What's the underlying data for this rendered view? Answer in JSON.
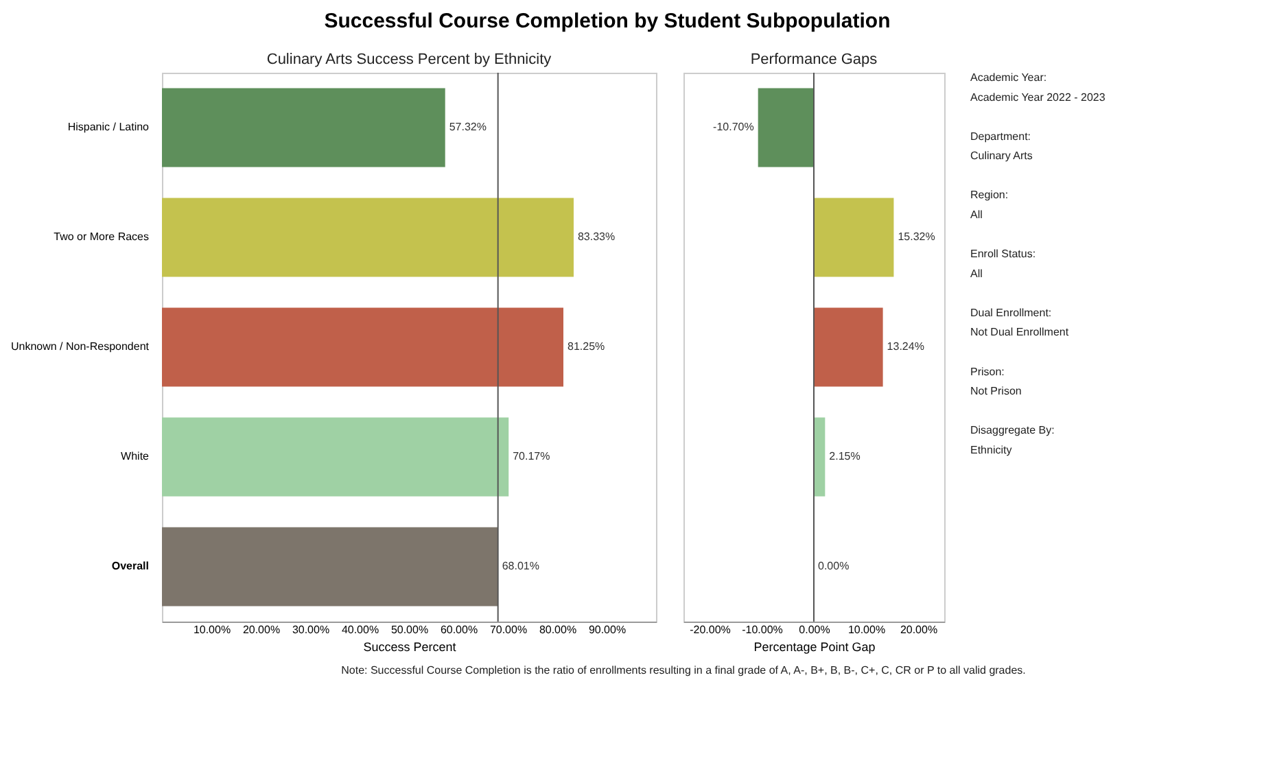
{
  "chart_data": [
    {
      "type": "bar",
      "orientation": "horizontal",
      "title": "Successful Course Completion by Student Subpopulation",
      "subtitle": "Culinary Arts Success Percent by Ethnicity",
      "xlabel": "Success Percent",
      "categories": [
        "Hispanic / Latino",
        "Two or More Races",
        "Unknown / Non-Respondent",
        "White",
        "Overall"
      ],
      "values": [
        57.32,
        83.33,
        81.25,
        70.17,
        68.01
      ],
      "colors": [
        "#5e8f5b",
        "#c4c24e",
        "#c0604a",
        "#9fd1a4",
        "#7d756b"
      ],
      "value_labels": [
        "57.32%",
        "83.33%",
        "81.25%",
        "70.17%",
        "68.01%"
      ],
      "xlim": [
        0,
        100
      ],
      "xticks": [
        {
          "value": 10,
          "label": "10.00%"
        },
        {
          "value": 20,
          "label": "20.00%"
        },
        {
          "value": 30,
          "label": "30.00%"
        },
        {
          "value": 40,
          "label": "40.00%"
        },
        {
          "value": 50,
          "label": "50.00%"
        },
        {
          "value": 60,
          "label": "60.00%"
        },
        {
          "value": 70,
          "label": "70.00%"
        },
        {
          "value": 80,
          "label": "80.00%"
        },
        {
          "value": 90,
          "label": "90.00%"
        }
      ],
      "ref_lines": [
        {
          "axis": "x",
          "value": 68.01,
          "color": "#555555"
        }
      ],
      "grid": false,
      "annotations": [
        "Note: Successful Course Completion is the ratio of enrollments resulting in a final grade of A, A-, B+, B, B-, C+, C, CR or P to all valid grades."
      ]
    },
    {
      "type": "bar",
      "orientation": "horizontal",
      "subtitle": "Performance Gaps",
      "xlabel": "Percentage Point Gap",
      "categories": [
        null,
        null,
        null,
        null,
        null
      ],
      "values": [
        -10.7,
        15.32,
        13.24,
        2.15,
        0.0
      ],
      "colors": [
        "#5e8f5b",
        "#c4c24e",
        "#c0604a",
        "#9fd1a4",
        "#7d756b"
      ],
      "value_labels": [
        "-10.70%",
        "15.32%",
        "13.24%",
        "2.15%",
        "0.00%"
      ],
      "xlim": [
        -25,
        25
      ],
      "xticks": [
        {
          "value": -20,
          "label": "-20.00%"
        },
        {
          "value": -10,
          "label": "-10.00%"
        },
        {
          "value": 0,
          "label": "0.00%"
        },
        {
          "value": 10,
          "label": "10.00%"
        },
        {
          "value": 20,
          "label": "20.00%"
        }
      ],
      "ref_lines": [
        {
          "axis": "x",
          "value": 0,
          "color": "#555555"
        }
      ],
      "tick_labels": "x",
      "grid": false
    },
    {
      "type": "other",
      "annotations": [
        "Academic Year:",
        "Academic Year 2022 - 2023",
        "Department:",
        "Culinary Arts",
        "Region:",
        "All",
        "Enroll Status:",
        "All",
        "Dual Enrollment:",
        "Not Dual Enrollment",
        "Prison:",
        "Not Prison",
        "Disaggregate By:",
        "Ethnicity"
      ]
    }
  ]
}
